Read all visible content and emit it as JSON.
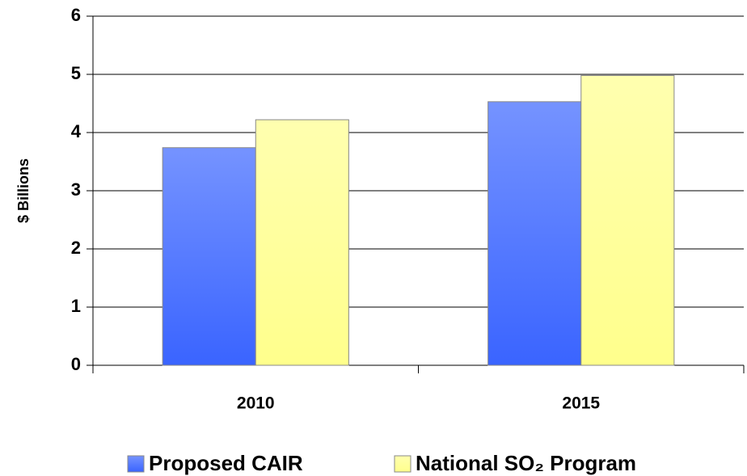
{
  "chart_data": {
    "type": "bar",
    "y_label": "$ Billions",
    "categories": [
      "2010",
      "2015"
    ],
    "series": [
      {
        "name": "Proposed CAIR",
        "color": "#3a64ff",
        "values": [
          3.74,
          4.53
        ]
      },
      {
        "name": "National SO₂ Program",
        "color": "#ffff8c",
        "values": [
          4.22,
          4.98
        ]
      }
    ],
    "ylim": [
      0,
      6
    ],
    "yticks": [
      0,
      1,
      2,
      3,
      4,
      5,
      6
    ],
    "grid": true,
    "legend": "bottom"
  }
}
